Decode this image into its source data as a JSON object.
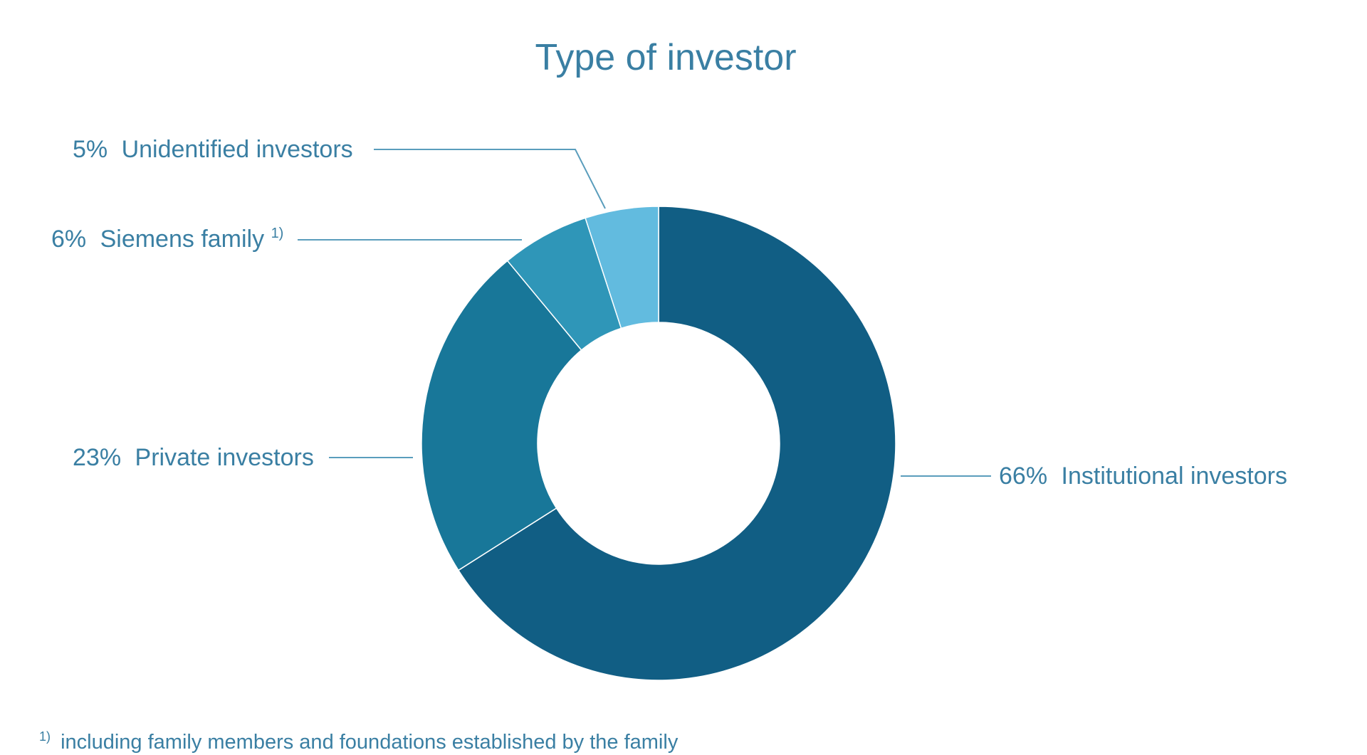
{
  "chart_data": {
    "type": "pie",
    "title": "Type of investor",
    "slices": [
      {
        "label": "Institutional investors",
        "value": 66,
        "value_label": "66%",
        "color": "#115e84"
      },
      {
        "label": "Private investors",
        "value": 23,
        "value_label": "23%",
        "color": "#187799"
      },
      {
        "label": "Siemens family",
        "value": 6,
        "value_label": "6%",
        "color": "#2f96b8",
        "footnote_marker": "1)"
      },
      {
        "label": "Unidentified investors",
        "value": 5,
        "value_label": "5%",
        "color": "#62bbdf"
      }
    ],
    "start_angle_deg": 0,
    "direction": "clockwise",
    "donut": true
  },
  "footnote": {
    "marker": "1)",
    "text": "including family members and foundations established by the family"
  }
}
